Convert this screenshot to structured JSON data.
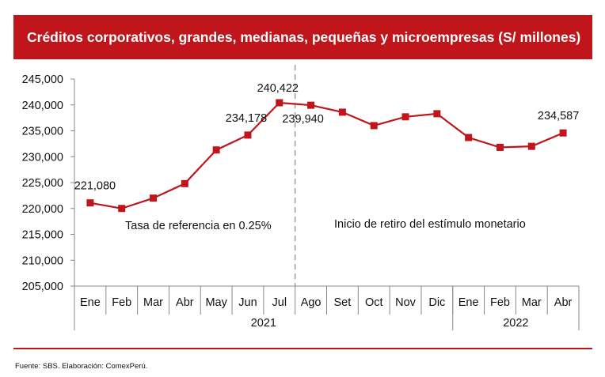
{
  "chart_data": {
    "type": "line",
    "title": "Créditos corporativos, grandes, medianas, pequeñas y microempresas (S/ millones)",
    "categories": [
      "Ene",
      "Feb",
      "Mar",
      "Abr",
      "May",
      "Jun",
      "Jul",
      "Ago",
      "Set",
      "Oct",
      "Nov",
      "Dic",
      "Ene",
      "Feb",
      "Mar",
      "Abr"
    ],
    "years": [
      {
        "label": "2021",
        "start": 0,
        "end": 11
      },
      {
        "label": "2022",
        "start": 12,
        "end": 15
      }
    ],
    "series": [
      {
        "name": "Créditos",
        "color": "#c0151b",
        "values": [
          221080,
          220000,
          222000,
          224800,
          231300,
          234178,
          240422,
          239940,
          238600,
          236000,
          237700,
          238300,
          233700,
          231800,
          232000,
          234587
        ]
      }
    ],
    "data_labels": [
      {
        "index": 0,
        "text": "221,080"
      },
      {
        "index": 5,
        "text": "234,178"
      },
      {
        "index": 6,
        "text": "240,422"
      },
      {
        "index": 7,
        "text": "239,940"
      },
      {
        "index": 15,
        "text": "234,587"
      }
    ],
    "ylim": [
      205000,
      245000
    ],
    "yticks": [
      205000,
      210000,
      215000,
      220000,
      225000,
      230000,
      235000,
      240000,
      245000
    ],
    "ytick_labels": [
      "205,000",
      "210,000",
      "215,000",
      "220,000",
      "225,000",
      "230,000",
      "235,000",
      "240,000",
      "245,000"
    ],
    "divider_between": [
      6,
      7
    ],
    "annotations": [
      {
        "text": "Tasa de referencia en 0.25%",
        "period": "before_divider"
      },
      {
        "text": "Inicio de retiro del estímulo monetario",
        "period": "after_divider"
      }
    ]
  },
  "source": "Fuente: SBS. Elaboración: ComexPerú."
}
